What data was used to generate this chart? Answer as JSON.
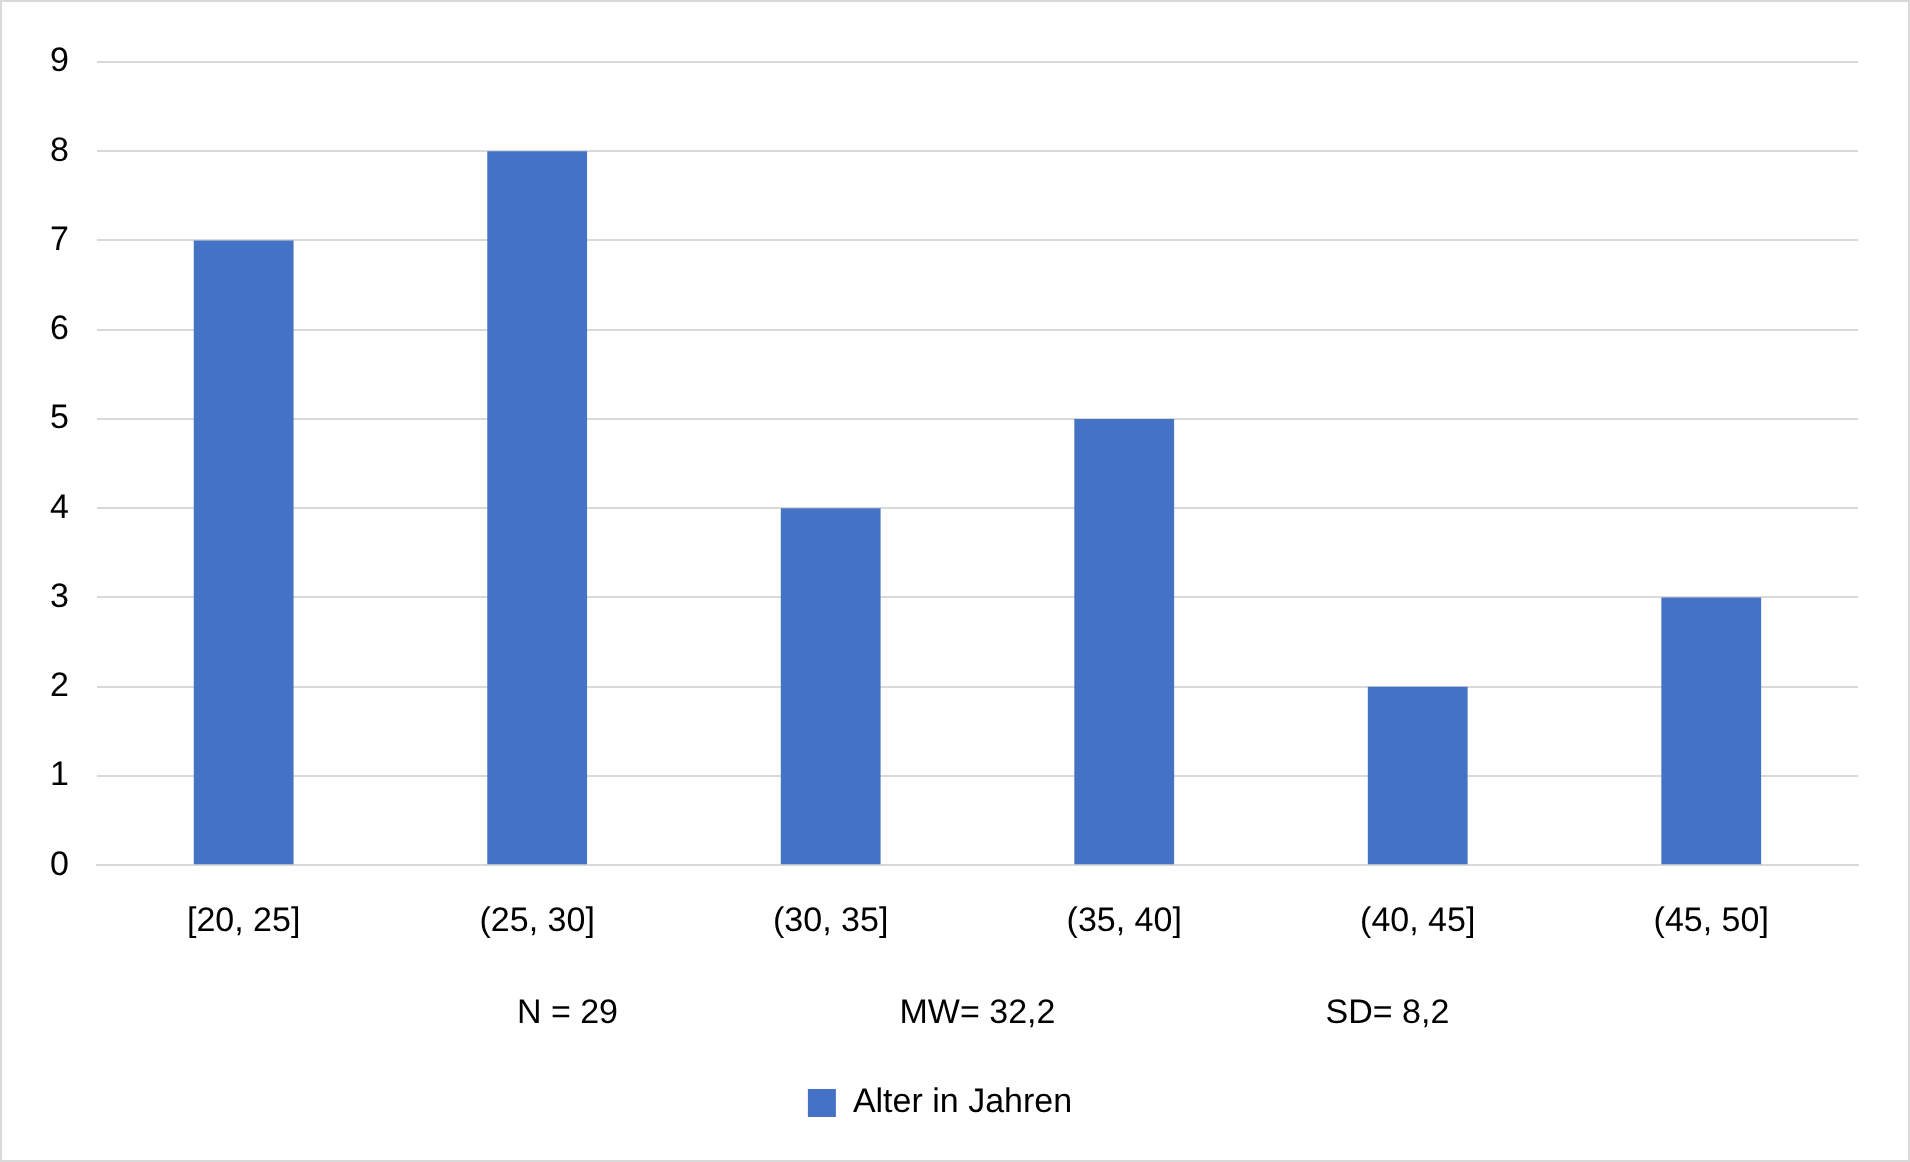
{
  "chart_data": {
    "type": "bar",
    "categories": [
      "[20, 25]",
      "(25, 30]",
      "(30, 35]",
      "(35, 40]",
      "(40, 45]",
      "(45, 50]"
    ],
    "series": [
      {
        "name": "Alter in Jahren",
        "color": "#4472c4",
        "values": [
          7,
          8,
          4,
          5,
          2,
          3
        ]
      }
    ],
    "ylim": [
      0,
      9
    ],
    "yticks": [
      0,
      1,
      2,
      3,
      4,
      5,
      6,
      7,
      8,
      9
    ],
    "grid": "y",
    "legend": "bottom",
    "annotations": [
      "N = 29",
      "MW= 32,2",
      "SD= 8,2"
    ]
  }
}
